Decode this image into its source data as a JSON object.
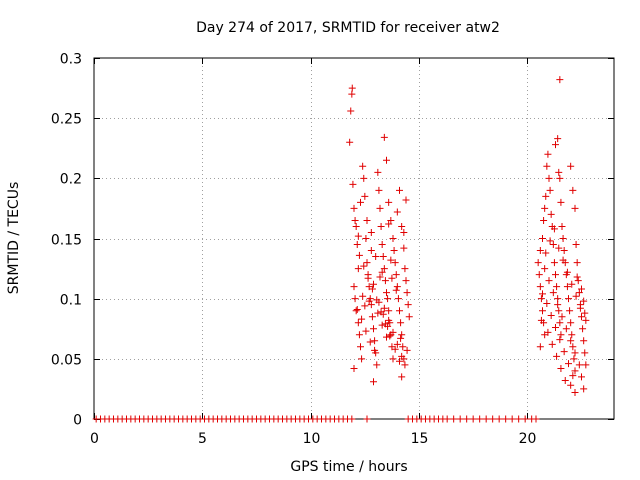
{
  "chart_data": {
    "type": "scatter",
    "title": "Day 274 of 2017, SRMTID for receiver atw2",
    "xlabel": "GPS time / hours",
    "ylabel": "SRMTID / TECUs",
    "xlim": [
      0,
      24
    ],
    "ylim": [
      0,
      0.3
    ],
    "xticks": [
      0,
      5,
      10,
      15,
      20
    ],
    "xtick_labels": [
      "0",
      "5",
      "10",
      "15",
      "20"
    ],
    "yticks": [
      0,
      0.05,
      0.1,
      0.15,
      0.2,
      0.25,
      0.3
    ],
    "ytick_labels": [
      "0",
      "0.05",
      "0.1",
      "0.15",
      "0.2",
      "0.25",
      "0.3"
    ],
    "grid": true,
    "marker": "+",
    "series": [
      {
        "name": "SRMTID",
        "color": "#e00000",
        "points": [
          [
            0.1,
            0
          ],
          [
            0.3,
            0
          ],
          [
            0.5,
            0
          ],
          [
            0.7,
            0
          ],
          [
            0.9,
            0
          ],
          [
            1.1,
            0
          ],
          [
            1.3,
            0
          ],
          [
            1.5,
            0
          ],
          [
            1.7,
            0
          ],
          [
            1.9,
            0
          ],
          [
            2.1,
            0
          ],
          [
            2.3,
            0
          ],
          [
            2.5,
            0
          ],
          [
            2.7,
            0
          ],
          [
            2.9,
            0
          ],
          [
            3.1,
            0
          ],
          [
            3.3,
            0
          ],
          [
            3.5,
            0
          ],
          [
            3.7,
            0
          ],
          [
            3.9,
            0
          ],
          [
            4.1,
            0
          ],
          [
            4.3,
            0
          ],
          [
            4.5,
            0
          ],
          [
            4.7,
            0
          ],
          [
            4.9,
            0
          ],
          [
            5.1,
            0
          ],
          [
            5.3,
            0
          ],
          [
            5.5,
            0
          ],
          [
            5.7,
            0
          ],
          [
            5.9,
            0
          ],
          [
            6.1,
            0
          ],
          [
            6.3,
            0
          ],
          [
            6.5,
            0
          ],
          [
            6.7,
            0
          ],
          [
            6.9,
            0
          ],
          [
            7.1,
            0
          ],
          [
            7.3,
            0
          ],
          [
            7.5,
            0
          ],
          [
            7.7,
            0
          ],
          [
            7.9,
            0
          ],
          [
            8.1,
            0
          ],
          [
            8.3,
            0
          ],
          [
            8.5,
            0
          ],
          [
            8.7,
            0
          ],
          [
            8.9,
            0
          ],
          [
            9.1,
            0
          ],
          [
            9.3,
            0
          ],
          [
            9.5,
            0
          ],
          [
            9.7,
            0
          ],
          [
            9.9,
            0
          ],
          [
            10.1,
            0
          ],
          [
            10.3,
            0
          ],
          [
            10.5,
            0
          ],
          [
            10.7,
            0
          ],
          [
            10.9,
            0
          ],
          [
            11.1,
            0
          ],
          [
            11.3,
            0
          ],
          [
            11.5,
            0
          ],
          [
            11.7,
            0
          ],
          [
            11.9,
            0
          ],
          [
            12.6,
            0
          ],
          [
            14.5,
            0
          ],
          [
            14.7,
            0
          ],
          [
            14.9,
            0
          ],
          [
            15.1,
            0
          ],
          [
            15.3,
            0
          ],
          [
            15.5,
            0
          ],
          [
            15.7,
            0
          ],
          [
            15.9,
            0
          ],
          [
            16.1,
            0
          ],
          [
            16.3,
            0
          ],
          [
            16.6,
            0
          ],
          [
            16.9,
            0
          ],
          [
            17.2,
            0
          ],
          [
            17.5,
            0
          ],
          [
            17.8,
            0
          ],
          [
            18.1,
            0
          ],
          [
            18.4,
            0
          ],
          [
            18.7,
            0
          ],
          [
            19.0,
            0
          ],
          [
            19.3,
            0
          ],
          [
            19.6,
            0
          ],
          [
            19.9,
            0
          ],
          [
            20.2,
            0
          ],
          [
            20.4,
            0
          ],
          [
            11.8,
            0.23
          ],
          [
            11.85,
            0.256
          ],
          [
            11.9,
            0.27
          ],
          [
            11.92,
            0.275
          ],
          [
            11.95,
            0.195
          ],
          [
            12.0,
            0.175
          ],
          [
            12.05,
            0.165
          ],
          [
            12.1,
            0.16
          ],
          [
            12.15,
            0.145
          ],
          [
            12.2,
            0.125
          ],
          [
            12.0,
            0.11
          ],
          [
            12.05,
            0.1
          ],
          [
            12.1,
            0.09
          ],
          [
            12.2,
            0.08
          ],
          [
            12.25,
            0.07
          ],
          [
            12.3,
            0.06
          ],
          [
            12.35,
            0.05
          ],
          [
            12.0,
            0.042
          ],
          [
            12.4,
            0.21
          ],
          [
            12.45,
            0.2
          ],
          [
            12.5,
            0.185
          ],
          [
            12.55,
            0.15
          ],
          [
            12.6,
            0.13
          ],
          [
            12.65,
            0.12
          ],
          [
            12.7,
            0.11
          ],
          [
            12.75,
            0.1
          ],
          [
            12.8,
            0.095
          ],
          [
            12.85,
            0.085
          ],
          [
            12.9,
            0.075
          ],
          [
            12.95,
            0.065
          ],
          [
            13.0,
            0.055
          ],
          [
            13.05,
            0.045
          ],
          [
            12.9,
            0.031
          ],
          [
            13.1,
            0.205
          ],
          [
            13.15,
            0.19
          ],
          [
            13.2,
            0.175
          ],
          [
            13.25,
            0.16
          ],
          [
            13.3,
            0.145
          ],
          [
            13.35,
            0.135
          ],
          [
            13.4,
            0.125
          ],
          [
            13.45,
            0.115
          ],
          [
            13.5,
            0.105
          ],
          [
            13.55,
            0.1
          ],
          [
            13.6,
            0.09
          ],
          [
            13.65,
            0.08
          ],
          [
            13.7,
            0.07
          ],
          [
            13.75,
            0.06
          ],
          [
            13.8,
            0.05
          ],
          [
            13.4,
            0.234
          ],
          [
            13.5,
            0.215
          ],
          [
            13.6,
            0.18
          ],
          [
            13.7,
            0.165
          ],
          [
            13.8,
            0.15
          ],
          [
            13.85,
            0.14
          ],
          [
            13.9,
            0.13
          ],
          [
            13.95,
            0.12
          ],
          [
            14.0,
            0.11
          ],
          [
            14.05,
            0.1
          ],
          [
            14.1,
            0.09
          ],
          [
            14.15,
            0.08
          ],
          [
            14.2,
            0.07
          ],
          [
            14.25,
            0.06
          ],
          [
            14.3,
            0.05
          ],
          [
            14.35,
            0.045
          ],
          [
            14.1,
            0.19
          ],
          [
            14.2,
            0.16
          ],
          [
            14.3,
            0.155
          ],
          [
            14.35,
            0.125
          ],
          [
            14.4,
            0.115
          ],
          [
            14.45,
            0.105
          ],
          [
            14.5,
            0.095
          ],
          [
            14.55,
            0.085
          ],
          [
            14.2,
            0.035
          ],
          [
            12.3,
            0.18
          ],
          [
            12.6,
            0.165
          ],
          [
            12.8,
            0.14
          ],
          [
            13.0,
            0.135
          ],
          [
            13.2,
            0.118
          ],
          [
            13.4,
            0.092
          ],
          [
            13.6,
            0.082
          ],
          [
            13.8,
            0.072
          ],
          [
            14.0,
            0.062
          ],
          [
            14.2,
            0.052
          ],
          [
            12.4,
            0.102
          ],
          [
            12.7,
            0.098
          ],
          [
            13.1,
            0.088
          ],
          [
            13.3,
            0.078
          ],
          [
            13.5,
            0.068
          ],
          [
            13.9,
            0.058
          ],
          [
            14.1,
            0.048
          ],
          [
            12.5,
            0.094
          ],
          [
            12.9,
            0.112
          ],
          [
            13.3,
            0.122
          ],
          [
            13.7,
            0.132
          ],
          [
            14.3,
            0.142
          ],
          [
            12.2,
            0.152
          ],
          [
            12.8,
            0.155
          ],
          [
            13.6,
            0.162
          ],
          [
            14.0,
            0.172
          ],
          [
            14.4,
            0.182
          ],
          [
            12.15,
            0.091
          ],
          [
            12.35,
            0.083
          ],
          [
            12.55,
            0.073
          ],
          [
            12.75,
            0.064
          ],
          [
            12.95,
            0.057
          ],
          [
            13.15,
            0.097
          ],
          [
            13.35,
            0.087
          ],
          [
            13.55,
            0.077
          ],
          [
            13.75,
            0.117
          ],
          [
            13.95,
            0.107
          ],
          [
            14.15,
            0.067
          ],
          [
            14.45,
            0.057
          ],
          [
            12.25,
            0.136
          ],
          [
            12.45,
            0.127
          ],
          [
            12.65,
            0.117
          ],
          [
            12.85,
            0.108
          ],
          [
            13.05,
            0.099
          ],
          [
            13.25,
            0.089
          ],
          [
            13.45,
            0.079
          ],
          [
            13.65,
            0.069
          ],
          [
            20.5,
            0.13
          ],
          [
            20.55,
            0.12
          ],
          [
            20.6,
            0.11
          ],
          [
            20.65,
            0.1
          ],
          [
            20.7,
            0.09
          ],
          [
            20.75,
            0.08
          ],
          [
            20.8,
            0.07
          ],
          [
            20.6,
            0.06
          ],
          [
            20.7,
            0.15
          ],
          [
            20.75,
            0.165
          ],
          [
            20.8,
            0.175
          ],
          [
            20.85,
            0.185
          ],
          [
            20.9,
            0.21
          ],
          [
            20.95,
            0.22
          ],
          [
            21.0,
            0.2
          ],
          [
            21.05,
            0.19
          ],
          [
            21.1,
            0.17
          ],
          [
            21.15,
            0.16
          ],
          [
            21.2,
            0.145
          ],
          [
            21.25,
            0.13
          ],
          [
            21.3,
            0.12
          ],
          [
            21.35,
            0.11
          ],
          [
            21.4,
            0.1
          ],
          [
            21.45,
            0.09
          ],
          [
            21.5,
            0.08
          ],
          [
            21.55,
            0.07
          ],
          [
            21.3,
            0.228
          ],
          [
            21.4,
            0.233
          ],
          [
            21.45,
            0.205
          ],
          [
            21.5,
            0.2
          ],
          [
            21.55,
            0.18
          ],
          [
            21.6,
            0.16
          ],
          [
            21.65,
            0.15
          ],
          [
            21.7,
            0.14
          ],
          [
            21.75,
            0.13
          ],
          [
            21.8,
            0.12
          ],
          [
            21.85,
            0.11
          ],
          [
            21.9,
            0.1
          ],
          [
            21.95,
            0.09
          ],
          [
            22.0,
            0.08
          ],
          [
            22.05,
            0.07
          ],
          [
            22.1,
            0.06
          ],
          [
            22.15,
            0.05
          ],
          [
            22.2,
            0.04
          ],
          [
            21.5,
            0.282
          ],
          [
            22.0,
            0.21
          ],
          [
            22.1,
            0.19
          ],
          [
            22.2,
            0.175
          ],
          [
            22.25,
            0.145
          ],
          [
            22.3,
            0.13
          ],
          [
            22.35,
            0.115
          ],
          [
            22.4,
            0.105
          ],
          [
            22.45,
            0.095
          ],
          [
            22.5,
            0.085
          ],
          [
            22.55,
            0.075
          ],
          [
            22.6,
            0.065
          ],
          [
            22.65,
            0.055
          ],
          [
            22.7,
            0.045
          ],
          [
            22.5,
            0.035
          ],
          [
            22.6,
            0.025
          ],
          [
            22.0,
            0.028
          ],
          [
            22.2,
            0.022
          ],
          [
            20.6,
            0.14
          ],
          [
            20.8,
            0.125
          ],
          [
            21.0,
            0.115
          ],
          [
            21.2,
            0.105
          ],
          [
            21.4,
            0.095
          ],
          [
            21.6,
            0.085
          ],
          [
            21.8,
            0.075
          ],
          [
            22.0,
            0.065
          ],
          [
            22.2,
            0.055
          ],
          [
            22.4,
            0.045
          ],
          [
            20.7,
            0.104
          ],
          [
            20.9,
            0.096
          ],
          [
            21.1,
            0.086
          ],
          [
            21.3,
            0.076
          ],
          [
            21.5,
            0.066
          ],
          [
            21.7,
            0.056
          ],
          [
            21.9,
            0.046
          ],
          [
            22.1,
            0.036
          ],
          [
            22.3,
            0.118
          ],
          [
            22.5,
            0.108
          ],
          [
            22.6,
            0.098
          ],
          [
            22.65,
            0.088
          ],
          [
            20.85,
            0.138
          ],
          [
            21.05,
            0.148
          ],
          [
            21.25,
            0.158
          ],
          [
            21.45,
            0.142
          ],
          [
            21.65,
            0.132
          ],
          [
            21.85,
            0.122
          ],
          [
            22.05,
            0.112
          ],
          [
            22.25,
            0.102
          ],
          [
            22.45,
            0.092
          ],
          [
            22.7,
            0.082
          ],
          [
            20.65,
            0.082
          ],
          [
            20.95,
            0.072
          ],
          [
            21.15,
            0.062
          ],
          [
            21.35,
            0.052
          ],
          [
            21.55,
            0.042
          ],
          [
            21.75,
            0.032
          ]
        ]
      }
    ]
  }
}
